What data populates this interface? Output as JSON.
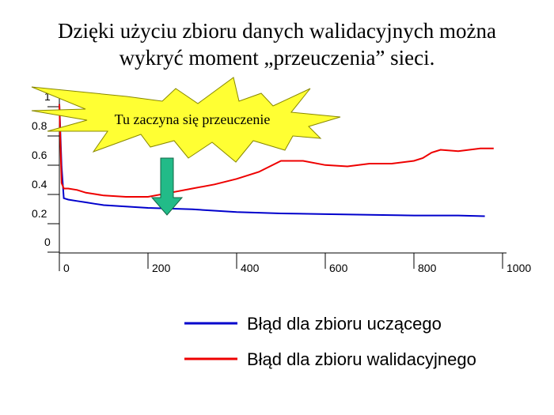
{
  "title": {
    "line1": "Dzięki użyciu zbioru danych walidacyjnych można",
    "line2": "wykryć moment „przeuczenia” sieci."
  },
  "annotation": {
    "text": "Tu zaczyna się przeuczenie",
    "burst_color": "#ffff33",
    "arrow_color": "#22bb88"
  },
  "chart_data": {
    "type": "line",
    "title": "",
    "xlabel": "",
    "ylabel": "",
    "xlim": [
      0,
      1000
    ],
    "ylim": [
      0,
      1
    ],
    "x_ticks": [
      "0",
      "200",
      "400",
      "600",
      "800",
      "1000"
    ],
    "y_ticks": [
      "0",
      "0.2",
      "0.4",
      "0.6",
      "0.8",
      "1"
    ],
    "grid": false,
    "legend_position": "bottom-right",
    "series": [
      {
        "name": "Błąd dla zbioru uczącego",
        "color": "#0000cc",
        "x": [
          0,
          5,
          10,
          20,
          40,
          60,
          80,
          100,
          150,
          200,
          250,
          300,
          400,
          500,
          600,
          700,
          800,
          900,
          960
        ],
        "y": [
          0.95,
          0.5,
          0.27,
          0.26,
          0.25,
          0.24,
          0.23,
          0.22,
          0.21,
          0.2,
          0.195,
          0.19,
          0.17,
          0.16,
          0.155,
          0.15,
          0.145,
          0.145,
          0.14
        ]
      },
      {
        "name": "Błąd dla zbioru walidacyjnego",
        "color": "#ee0000",
        "x": [
          0,
          5,
          10,
          20,
          40,
          60,
          80,
          100,
          150,
          200,
          250,
          300,
          350,
          400,
          450,
          500,
          550,
          600,
          650,
          700,
          750,
          800,
          820,
          840,
          860,
          900,
          950,
          980
        ],
        "y": [
          0.95,
          0.38,
          0.34,
          0.34,
          0.33,
          0.31,
          0.3,
          0.29,
          0.28,
          0.28,
          0.31,
          0.34,
          0.37,
          0.41,
          0.46,
          0.54,
          0.54,
          0.51,
          0.5,
          0.52,
          0.52,
          0.54,
          0.56,
          0.6,
          0.62,
          0.61,
          0.63,
          0.63
        ]
      }
    ]
  }
}
